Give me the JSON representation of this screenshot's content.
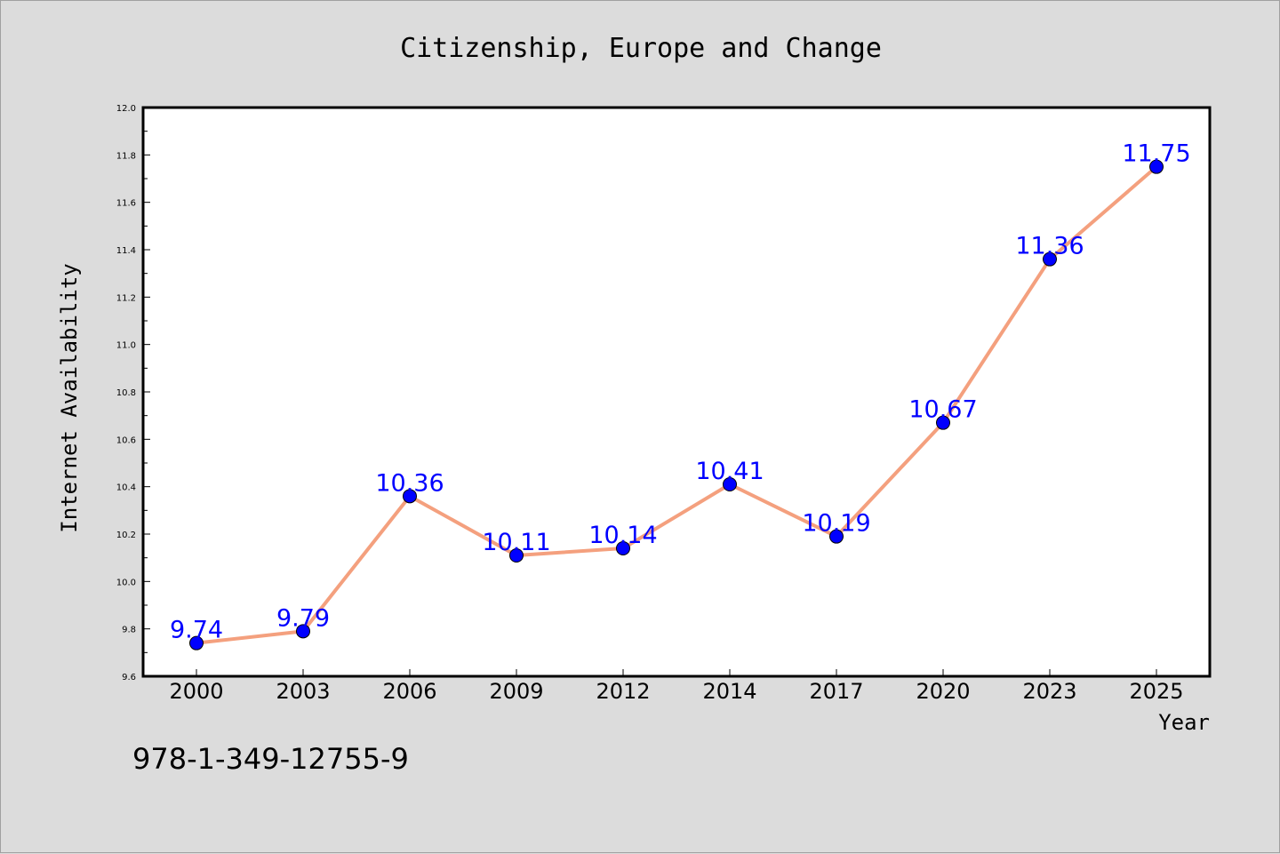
{
  "chart_data": {
    "type": "line",
    "title": "Citizenship, Europe and Change",
    "xlabel": "Year",
    "ylabel": "Internet Availability",
    "categories": [
      "2000",
      "2003",
      "2006",
      "2009",
      "2012",
      "2014",
      "2017",
      "2020",
      "2023",
      "2025"
    ],
    "series": [
      {
        "values": [
          9.74,
          9.79,
          10.36,
          10.11,
          10.14,
          10.41,
          10.19,
          10.67,
          11.36,
          11.75
        ],
        "data_labels": [
          "9.74",
          "9.79",
          "10.36",
          "10.11",
          "10.14",
          "10.41",
          "10.19",
          "10.67",
          "11.36",
          "11.75"
        ],
        "line_color": "#f4a07e",
        "marker_color": "#0000ff"
      }
    ],
    "ylim": [
      9.6,
      12.0
    ],
    "yticks": [
      "9.6",
      "9.8",
      "10.0",
      "10.2",
      "10.4",
      "10.6",
      "10.8",
      "11.0",
      "11.2",
      "11.4",
      "11.6",
      "11.8",
      "12.0"
    ],
    "grid": false,
    "annotation": "978-1-349-12755-9",
    "colors": {
      "background": "#dcdcdc",
      "plot_background": "#ffffff",
      "data_label": "#0000ff"
    }
  }
}
